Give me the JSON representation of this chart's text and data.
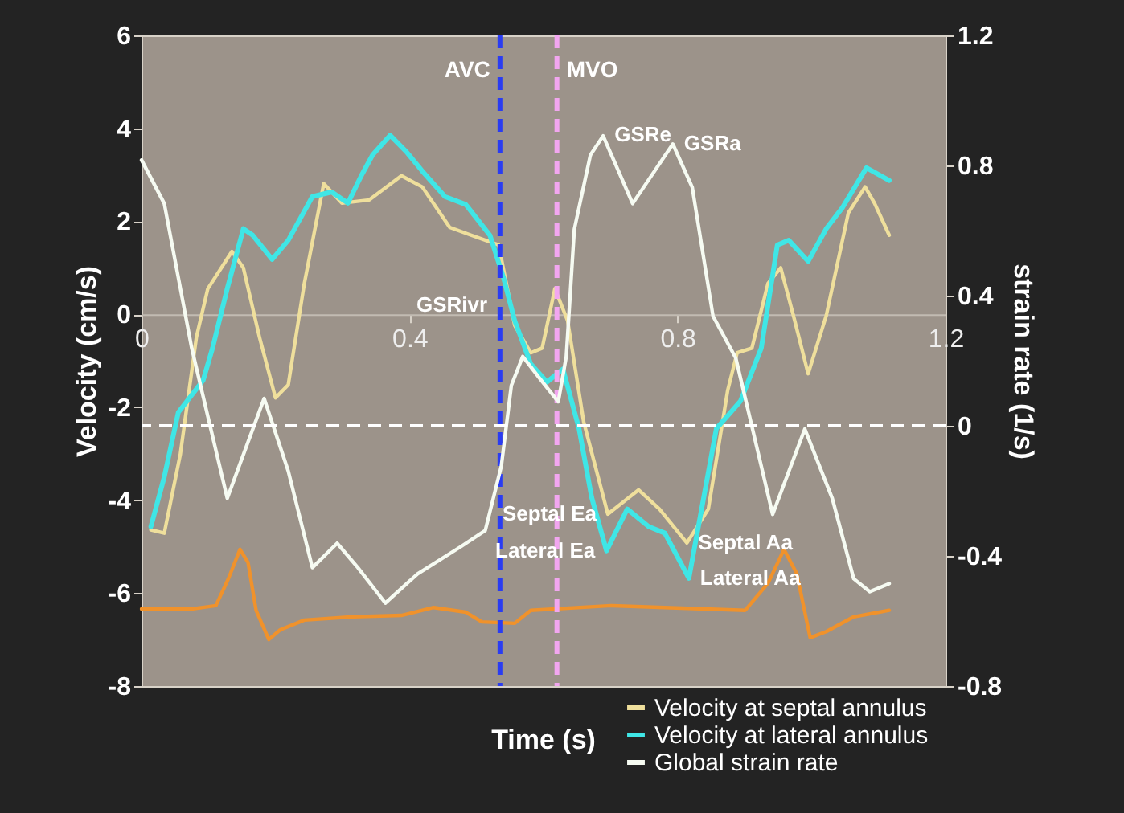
{
  "chart_data": {
    "type": "line",
    "xlabel": "Time (s)",
    "ylabel": "Velocity (cm/s)",
    "y2label": "strain rate (1/s)",
    "xlim": [
      0,
      1.2
    ],
    "xticks": [
      0,
      0.4,
      0.8,
      1.2
    ],
    "ylim": [
      -8,
      6
    ],
    "yticks": [
      -8,
      -6,
      -4,
      -2,
      0,
      2,
      4,
      6
    ],
    "y2lim": [
      -0.8,
      1.2
    ],
    "y2ticks": [
      -0.8,
      -0.4,
      0,
      0.4,
      0.8,
      1.2
    ],
    "grid": false,
    "legend": "bottom right",
    "line_style": "solid",
    "series": [
      {
        "name": "Velocity at septal annulus",
        "color": "#efdf9c",
        "x": [
          0.014,
          0.034,
          0.058,
          0.082,
          0.099,
          0.135,
          0.152,
          0.176,
          0.2,
          0.219,
          0.243,
          0.272,
          0.299,
          0.34,
          0.388,
          0.419,
          0.46,
          0.492,
          0.533,
          0.557,
          0.581,
          0.598,
          0.617,
          0.636,
          0.66,
          0.696,
          0.742,
          0.773,
          0.814,
          0.846,
          0.875,
          0.889,
          0.911,
          0.935,
          0.954,
          0.973,
          0.995,
          1.022,
          1.055,
          1.08,
          1.094,
          1.116
        ],
        "values": [
          -4.64,
          -4.71,
          -3.01,
          -0.49,
          0.55,
          1.35,
          1.0,
          -0.49,
          -1.8,
          -1.52,
          0.66,
          2.81,
          2.39,
          2.46,
          2.98,
          2.74,
          1.87,
          1.7,
          1.49,
          -0.24,
          -0.83,
          -0.73,
          0.55,
          -0.14,
          -2.32,
          -4.3,
          -3.78,
          -4.19,
          -4.92,
          -4.19,
          -1.63,
          -0.83,
          -0.73,
          0.66,
          1.0,
          -0.03,
          -1.28,
          -0.03,
          2.18,
          2.74,
          2.39,
          1.7
        ]
      },
      {
        "name": "Velocity at lateral annulus",
        "color": "#3fe6e6",
        "x": [
          0.014,
          0.034,
          0.055,
          0.092,
          0.106,
          0.128,
          0.152,
          0.166,
          0.195,
          0.219,
          0.255,
          0.284,
          0.308,
          0.328,
          0.345,
          0.371,
          0.395,
          0.419,
          0.453,
          0.484,
          0.52,
          0.54,
          0.557,
          0.581,
          0.605,
          0.629,
          0.653,
          0.672,
          0.694,
          0.725,
          0.757,
          0.781,
          0.817,
          0.839,
          0.858,
          0.894,
          0.925,
          0.949,
          0.966,
          0.995,
          1.022,
          1.046,
          1.082,
          1.116
        ],
        "values": [
          -4.57,
          -3.5,
          -2.11,
          -1.42,
          -0.73,
          0.55,
          1.84,
          1.7,
          1.18,
          1.59,
          2.53,
          2.63,
          2.39,
          2.98,
          3.43,
          3.85,
          3.5,
          3.08,
          2.53,
          2.36,
          1.7,
          0.8,
          -0.14,
          -1.07,
          -1.46,
          -1.18,
          -2.46,
          -3.95,
          -5.09,
          -4.19,
          -4.57,
          -4.71,
          -5.68,
          -3.95,
          -2.46,
          -1.87,
          -0.73,
          1.49,
          1.59,
          1.14,
          1.84,
          2.29,
          3.15,
          2.88
        ]
      },
      {
        "name": "Global strain rate",
        "color": "#f6fbf2",
        "axis": "y2",
        "x": [
          0.0,
          0.034,
          0.075,
          0.128,
          0.183,
          0.219,
          0.255,
          0.292,
          0.323,
          0.364,
          0.412,
          0.477,
          0.513,
          0.537,
          0.552,
          0.569,
          0.593,
          0.622,
          0.634,
          0.646,
          0.67,
          0.689,
          0.733,
          0.793,
          0.822,
          0.853,
          0.887,
          0.942,
          0.99,
          1.031,
          1.063,
          1.087,
          1.116
        ],
        "values": [
          0.817,
          0.683,
          0.238,
          -0.223,
          0.084,
          -0.139,
          -0.436,
          -0.361,
          -0.436,
          -0.545,
          -0.455,
          -0.371,
          -0.322,
          -0.124,
          0.124,
          0.213,
          0.149,
          0.074,
          0.213,
          0.604,
          0.832,
          0.891,
          0.683,
          0.866,
          0.733,
          0.337,
          0.208,
          -0.272,
          -0.01,
          -0.223,
          -0.47,
          -0.51,
          -0.485
        ]
      },
      {
        "color": "#f0922b",
        "x": [
          0.0,
          0.075,
          0.111,
          0.13,
          0.147,
          0.159,
          0.171,
          0.19,
          0.207,
          0.243,
          0.316,
          0.388,
          0.436,
          0.484,
          0.508,
          0.557,
          0.581,
          0.701,
          0.781,
          0.901,
          0.935,
          0.959,
          0.978,
          0.998,
          1.022,
          1.063,
          1.116
        ],
        "values": [
          -6.34,
          -6.34,
          -6.27,
          -5.68,
          -5.06,
          -5.34,
          -6.37,
          -7.0,
          -6.79,
          -6.58,
          -6.51,
          -6.48,
          -6.31,
          -6.41,
          -6.62,
          -6.65,
          -6.37,
          -6.27,
          -6.31,
          -6.37,
          -5.79,
          -5.06,
          -5.58,
          -6.96,
          -6.83,
          -6.51,
          -6.37
        ]
      }
    ],
    "ref_lines": [
      {
        "axis": "x",
        "value": 0.535,
        "label": "AVC",
        "color": "#2a3cf2",
        "line_style": "dashed"
      },
      {
        "axis": "x",
        "value": 0.62,
        "label": "MVO",
        "color": "#f2a6f0",
        "line_style": "dashed"
      },
      {
        "axis": "y2",
        "value": 0,
        "color": "#ffffff",
        "line_style": "dashed"
      }
    ],
    "annotations": [
      {
        "text": "GSRe",
        "x": 0.689,
        "y": 3.85
      },
      {
        "text": "GSRivr",
        "x": 0.533,
        "y": 0.2
      },
      {
        "text": "GSRa",
        "x": 0.793,
        "y": 3.67
      },
      {
        "text": "Septal Ea",
        "x": 0.696,
        "y": -4.3
      },
      {
        "text": "Septal Aa",
        "x": 0.814,
        "y": -4.92
      },
      {
        "text": "Lateral Ea",
        "x": 0.694,
        "y": -5.09
      },
      {
        "text": "Lateral Aa",
        "x": 0.817,
        "y": -5.68
      }
    ]
  }
}
